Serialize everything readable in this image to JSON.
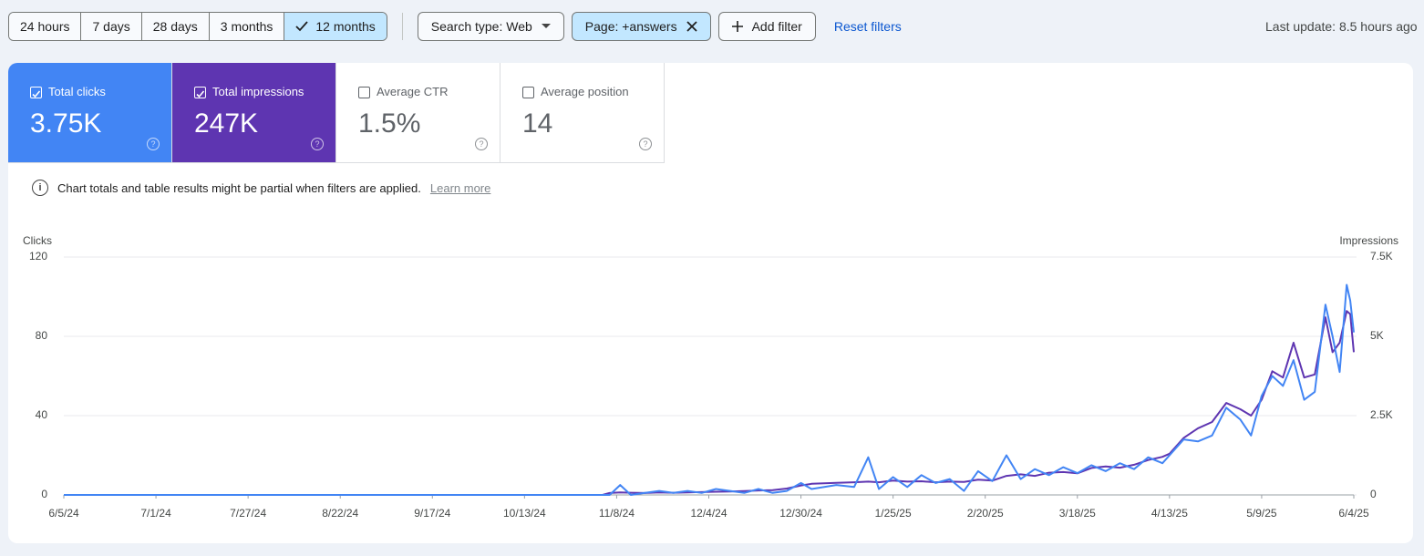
{
  "toolbar": {
    "time_ranges": [
      "24 hours",
      "7 days",
      "28 days",
      "3 months",
      "12 months"
    ],
    "selected_range": 4,
    "filters": [
      {
        "label": "Search type: Web",
        "kind": "dropdown"
      },
      {
        "label": "Page: +answers",
        "kind": "removable"
      }
    ],
    "add_filter": "Add filter",
    "reset": "Reset filters",
    "last_update": "Last update: 8.5 hours ago"
  },
  "metrics": [
    {
      "label": "Total clicks",
      "value": "3.75K",
      "checked": true,
      "color": "#4285f4"
    },
    {
      "label": "Total impressions",
      "value": "247K",
      "checked": true,
      "color": "#5e35b1"
    },
    {
      "label": "Average CTR",
      "value": "1.5%",
      "checked": false,
      "color": "#ffffff"
    },
    {
      "label": "Average position",
      "value": "14",
      "checked": false,
      "color": "#ffffff"
    }
  ],
  "notice": {
    "text": "Chart totals and table results might be partial when filters are applied.",
    "link": "Learn more"
  },
  "chart_data": {
    "type": "line",
    "y_label": "Clicks",
    "y2_label": "Impressions",
    "x": [
      "6/5/24",
      "10/31/24",
      "11/4/24",
      "11/6/24",
      "11/9/24",
      "11/12/24",
      "11/16/24",
      "11/20/24",
      "11/24/24",
      "11/28/24",
      "12/2/24",
      "12/6/24",
      "12/10/24",
      "12/14/24",
      "12/18/24",
      "12/22/24",
      "12/26/24",
      "12/30/24",
      "1/2/25",
      "1/9/25",
      "1/14/25",
      "1/18/25",
      "1/21/25",
      "1/25/25",
      "1/29/25",
      "2/2/25",
      "2/6/25",
      "2/10/25",
      "2/14/25",
      "2/18/25",
      "2/22/25",
      "2/26/25",
      "3/2/25",
      "3/6/25",
      "3/10/25",
      "3/14/25",
      "3/18/25",
      "3/22/25",
      "3/26/25",
      "3/30/25",
      "4/3/25",
      "4/7/25",
      "4/11/25",
      "4/13/25",
      "4/17/25",
      "4/21/25",
      "4/25/25",
      "4/29/25",
      "5/3/25",
      "5/6/25",
      "5/9/25",
      "5/12/25",
      "5/15/25",
      "5/18/25",
      "5/21/25",
      "5/24/25",
      "5/27/25",
      "5/29/25",
      "5/31/25",
      "6/2/25",
      "6/3/25",
      "6/4/25"
    ],
    "series": [
      {
        "name": "Clicks",
        "color": "#4285f4",
        "axis": "y",
        "values": [
          0,
          0,
          0,
          0,
          5,
          0,
          1,
          2,
          1,
          2,
          1,
          3,
          2,
          1,
          3,
          1,
          2,
          6,
          3,
          5,
          4,
          19,
          3,
          9,
          4,
          10,
          6,
          8,
          2,
          12,
          7,
          20,
          8,
          13,
          10,
          14,
          11,
          15,
          12,
          16,
          13,
          19,
          16,
          20,
          28,
          27,
          30,
          44,
          38,
          30,
          50,
          60,
          55,
          68,
          48,
          52,
          96,
          80,
          62,
          106,
          98,
          82
        ]
      },
      {
        "name": "Impressions",
        "color": "#5e35b1",
        "axis": "y2",
        "values": [
          0,
          0,
          0,
          60,
          80,
          70,
          60,
          80,
          70,
          80,
          90,
          100,
          110,
          120,
          140,
          150,
          200,
          300,
          350,
          380,
          400,
          420,
          400,
          450,
          420,
          430,
          400,
          420,
          410,
          480,
          450,
          600,
          650,
          600,
          700,
          720,
          680,
          850,
          900,
          860,
          950,
          1100,
          1200,
          1300,
          1800,
          2100,
          2300,
          2900,
          2700,
          2500,
          3000,
          3900,
          3700,
          4800,
          3700,
          3800,
          5600,
          4500,
          4800,
          5800,
          5700,
          4500
        ]
      }
    ],
    "xlim": [
      "6/5/24",
      "6/4/25"
    ],
    "xticks": [
      "6/5/24",
      "7/1/24",
      "7/27/24",
      "8/22/24",
      "9/17/24",
      "10/13/24",
      "11/8/24",
      "12/4/24",
      "12/30/24",
      "1/25/25",
      "2/20/25",
      "3/18/25",
      "4/13/25",
      "5/9/25",
      "6/4/25"
    ],
    "ylim": [
      0,
      120
    ],
    "yticks": [
      0,
      40,
      80,
      120
    ],
    "y2lim": [
      0,
      7500
    ],
    "y2ticks": [
      0,
      {
        "value": 2500,
        "label": "2.5K"
      },
      {
        "value": 5000,
        "label": "5K"
      },
      {
        "value": 7500,
        "label": "7.5K"
      }
    ],
    "grid": true
  }
}
